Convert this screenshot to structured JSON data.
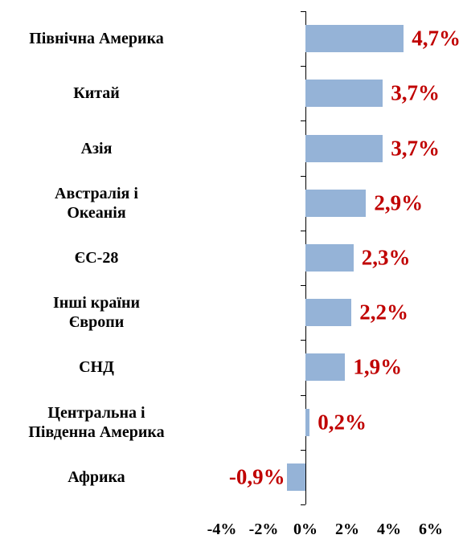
{
  "chart_data": {
    "type": "bar",
    "orientation": "horizontal",
    "categories": [
      "Північна Америка",
      "Китай",
      "Азія",
      "Австралія і\nОкеанія",
      "ЄС-28",
      "Інші країни\nЄвропи",
      "СНД",
      "Центральна і\nПівденна Америка",
      "Африка"
    ],
    "values": [
      4.7,
      3.7,
      3.7,
      2.9,
      2.3,
      2.2,
      1.9,
      0.2,
      -0.9
    ],
    "value_labels": [
      "4,7%",
      "3,7%",
      "3,7%",
      "2,9%",
      "2,3%",
      "2,2%",
      "1,9%",
      "0,2%",
      "-0,9%"
    ],
    "color": "#95b3d7",
    "value_label_color": "#c00000",
    "xlim": [
      -4,
      6
    ],
    "xticks": [
      {
        "value": -4,
        "label": "-4%"
      },
      {
        "value": -2,
        "label": "-2%"
      },
      {
        "value": 0,
        "label": "0%"
      },
      {
        "value": 2,
        "label": "2%"
      },
      {
        "value": 4,
        "label": "4%"
      },
      {
        "value": 6,
        "label": "6%"
      }
    ]
  }
}
